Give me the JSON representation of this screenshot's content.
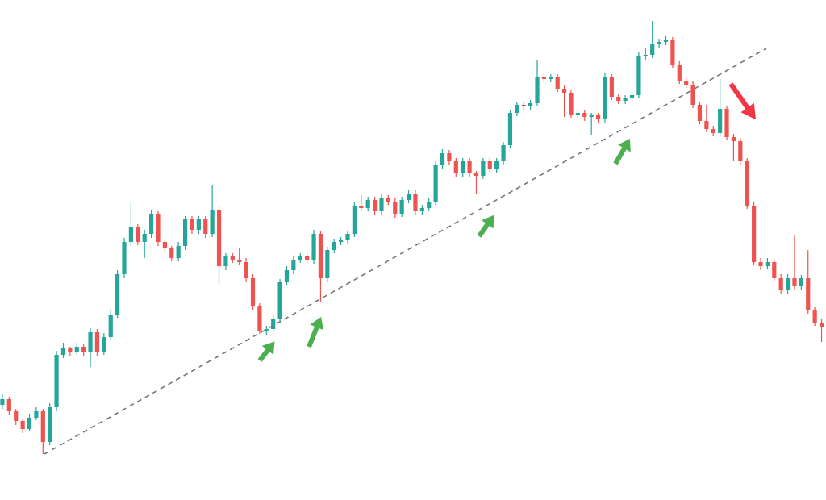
{
  "chart_data": {
    "type": "candlestick",
    "up_color": "#26a69a",
    "down_color": "#ef5350",
    "ylim": [
      0,
      620
    ],
    "candles": [
      [
        118,
        132,
        113,
        125
      ],
      [
        125,
        128,
        105,
        110
      ],
      [
        110,
        113,
        93,
        98
      ],
      [
        98,
        101,
        83,
        88
      ],
      [
        88,
        107,
        85,
        102
      ],
      [
        102,
        115,
        99,
        110
      ],
      [
        110,
        113,
        57,
        72
      ],
      [
        72,
        120,
        68,
        115
      ],
      [
        115,
        185,
        110,
        180
      ],
      [
        180,
        195,
        176,
        188
      ],
      [
        188,
        190,
        178,
        184
      ],
      [
        184,
        195,
        180,
        190
      ],
      [
        190,
        193,
        178,
        183
      ],
      [
        183,
        213,
        165,
        208
      ],
      [
        208,
        212,
        179,
        184
      ],
      [
        184,
        207,
        180,
        202
      ],
      [
        202,
        235,
        198,
        230
      ],
      [
        230,
        285,
        226,
        280
      ],
      [
        280,
        325,
        275,
        320
      ],
      [
        320,
        370,
        315,
        338
      ],
      [
        338,
        342,
        316,
        320
      ],
      [
        320,
        335,
        300,
        330
      ],
      [
        330,
        360,
        325,
        355
      ],
      [
        355,
        358,
        315,
        320
      ],
      [
        320,
        324,
        308,
        312
      ],
      [
        312,
        315,
        296,
        300
      ],
      [
        300,
        320,
        296,
        315
      ],
      [
        315,
        352,
        310,
        348
      ],
      [
        348,
        352,
        330,
        335
      ],
      [
        335,
        352,
        330,
        348
      ],
      [
        348,
        352,
        325,
        330
      ],
      [
        330,
        390,
        326,
        360
      ],
      [
        360,
        364,
        268,
        290
      ],
      [
        290,
        306,
        285,
        302
      ],
      [
        302,
        306,
        294,
        298
      ],
      [
        298,
        312,
        292,
        295
      ],
      [
        295,
        300,
        270,
        275
      ],
      [
        275,
        280,
        236,
        240
      ],
      [
        240,
        244,
        206,
        210
      ],
      [
        210,
        216,
        205,
        212
      ],
      [
        212,
        229,
        208,
        225
      ],
      [
        225,
        274,
        220,
        270
      ],
      [
        270,
        290,
        266,
        285
      ],
      [
        285,
        302,
        280,
        298
      ],
      [
        298,
        306,
        294,
        302
      ],
      [
        302,
        306,
        294,
        298
      ],
      [
        298,
        335,
        293,
        330
      ],
      [
        330,
        334,
        245,
        275
      ],
      [
        275,
        314,
        270,
        310
      ],
      [
        310,
        324,
        306,
        320
      ],
      [
        320,
        326,
        316,
        322
      ],
      [
        322,
        334,
        318,
        330
      ],
      [
        330,
        370,
        326,
        365
      ],
      [
        365,
        378,
        358,
        362
      ],
      [
        362,
        376,
        358,
        372
      ],
      [
        372,
        376,
        354,
        358
      ],
      [
        358,
        380,
        354,
        375
      ],
      [
        375,
        378,
        366,
        370
      ],
      [
        370,
        374,
        350,
        355
      ],
      [
        355,
        376,
        351,
        372
      ],
      [
        372,
        385,
        368,
        380
      ],
      [
        380,
        384,
        354,
        358
      ],
      [
        358,
        366,
        354,
        362
      ],
      [
        362,
        374,
        358,
        370
      ],
      [
        370,
        420,
        366,
        415
      ],
      [
        415,
        435,
        411,
        430
      ],
      [
        430,
        434,
        416,
        420
      ],
      [
        420,
        424,
        400,
        405
      ],
      [
        405,
        424,
        401,
        420
      ],
      [
        420,
        424,
        400,
        405
      ],
      [
        405,
        408,
        380,
        402
      ],
      [
        402,
        424,
        398,
        420
      ],
      [
        420,
        424,
        406,
        410
      ],
      [
        410,
        424,
        406,
        420
      ],
      [
        420,
        444,
        416,
        440
      ],
      [
        440,
        484,
        436,
        480
      ],
      [
        480,
        494,
        476,
        490
      ],
      [
        490,
        494,
        484,
        488
      ],
      [
        488,
        496,
        484,
        492
      ],
      [
        492,
        545,
        488,
        525
      ],
      [
        525,
        530,
        518,
        522
      ],
      [
        522,
        528,
        518,
        525
      ],
      [
        525,
        528,
        506,
        510
      ],
      [
        510,
        514,
        475,
        505
      ],
      [
        505,
        508,
        474,
        478
      ],
      [
        478,
        484,
        474,
        480
      ],
      [
        480,
        484,
        470,
        475
      ],
      [
        475,
        480,
        452,
        477
      ],
      [
        477,
        480,
        468,
        472
      ],
      [
        472,
        530,
        468,
        525
      ],
      [
        525,
        528,
        496,
        500
      ],
      [
        500,
        504,
        491,
        495
      ],
      [
        495,
        502,
        491,
        498
      ],
      [
        498,
        506,
        494,
        502
      ],
      [
        502,
        555,
        498,
        550
      ],
      [
        550,
        560,
        546,
        552
      ],
      [
        552,
        594,
        548,
        565
      ],
      [
        565,
        572,
        561,
        568
      ],
      [
        568,
        575,
        564,
        570
      ],
      [
        570,
        574,
        536,
        540
      ],
      [
        540,
        544,
        516,
        520
      ],
      [
        520,
        524,
        511,
        515
      ],
      [
        515,
        519,
        486,
        490
      ],
      [
        490,
        494,
        466,
        470
      ],
      [
        470,
        490,
        456,
        460
      ],
      [
        460,
        464,
        451,
        455
      ],
      [
        455,
        522,
        451,
        485
      ],
      [
        485,
        489,
        446,
        450
      ],
      [
        450,
        454,
        420,
        445
      ],
      [
        445,
        449,
        416,
        420
      ],
      [
        420,
        424,
        361,
        365
      ],
      [
        365,
        369,
        291,
        295
      ],
      [
        295,
        300,
        285,
        290
      ],
      [
        290,
        300,
        286,
        295
      ],
      [
        295,
        299,
        271,
        275
      ],
      [
        275,
        280,
        256,
        260
      ],
      [
        260,
        280,
        256,
        275
      ],
      [
        275,
        328,
        261,
        265
      ],
      [
        265,
        279,
        261,
        275
      ],
      [
        275,
        310,
        231,
        235
      ],
      [
        235,
        239,
        216,
        220
      ],
      [
        220,
        224,
        196,
        215
      ]
    ]
  }
}
